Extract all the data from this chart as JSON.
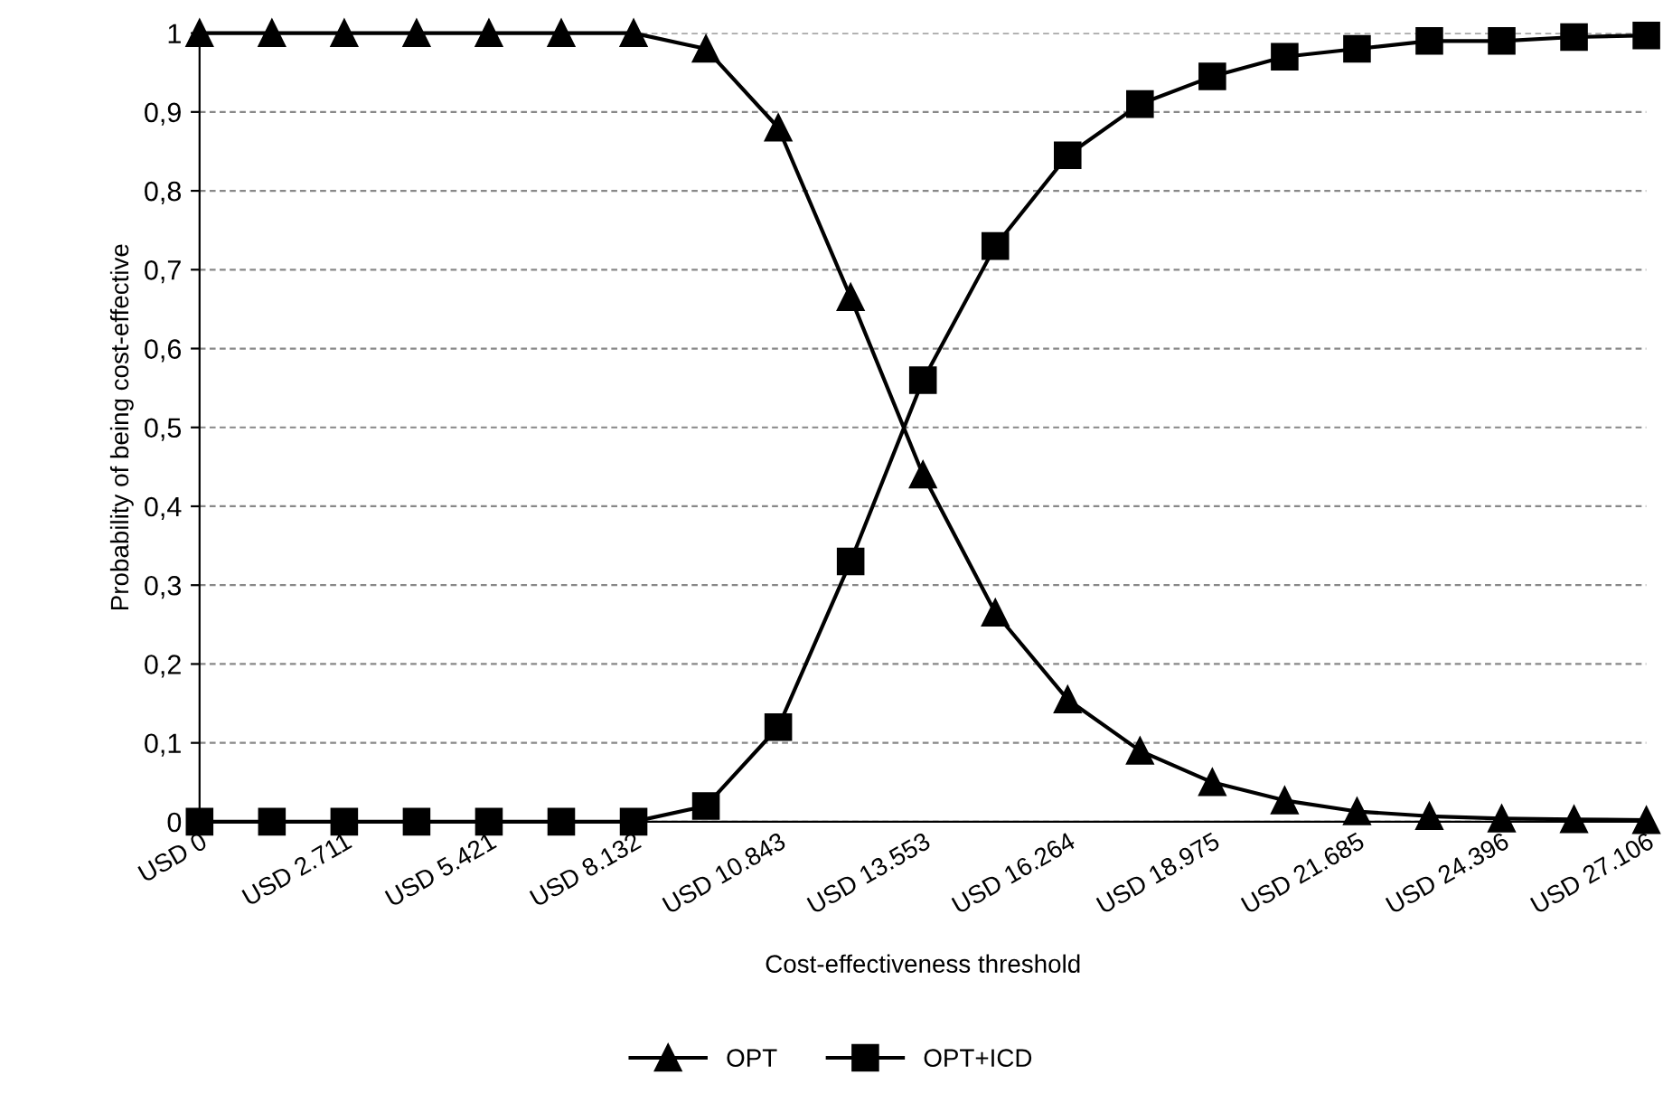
{
  "chart_data": {
    "type": "line",
    "xlabel": "Cost-effectiveness threshold",
    "ylabel": "Probability of being cost-effective",
    "categories": [
      "USD 0",
      null,
      "USD 2.711",
      null,
      "USD 5.421",
      null,
      "USD 8.132",
      null,
      "USD 10.843",
      null,
      "USD 13.553",
      null,
      "USD 16.264",
      null,
      "USD 18.975",
      null,
      "USD 21.685",
      null,
      "USD 24.396",
      null,
      "USD 27.106"
    ],
    "series": [
      {
        "name": "OPT",
        "color": "#000000",
        "marker": "triangle",
        "values": [
          1,
          1,
          1,
          1,
          1,
          1,
          1,
          0.98,
          0.88,
          0.665,
          0.44,
          0.265,
          0.155,
          0.09,
          0.05,
          0.027,
          0.013,
          0.007,
          0.004,
          0.003,
          0.002
        ]
      },
      {
        "name": "OPT+ICD",
        "color": "#000000",
        "marker": "square",
        "values": [
          0,
          0,
          0,
          0,
          0,
          0,
          0,
          0.02,
          0.12,
          0.33,
          0.56,
          0.73,
          0.845,
          0.91,
          0.945,
          0.97,
          0.98,
          0.99,
          0.99,
          0.995,
          0.997
        ]
      }
    ],
    "ylim": [
      0,
      1
    ],
    "yticks": [
      0,
      {
        "value": 0.1,
        "label": "0,1"
      },
      {
        "value": 0.2,
        "label": "0,2"
      },
      {
        "value": 0.3,
        "label": "0,3"
      },
      {
        "value": 0.4,
        "label": "0,4"
      },
      {
        "value": 0.5,
        "label": "0,5"
      },
      {
        "value": 0.6,
        "label": "0,6"
      },
      {
        "value": 0.7,
        "label": "0,7"
      },
      {
        "value": 0.8,
        "label": "0,8"
      },
      {
        "value": 0.9,
        "label": "0,9"
      },
      1
    ],
    "grid": "y",
    "legend": "bottom",
    "line_style": "solid"
  }
}
